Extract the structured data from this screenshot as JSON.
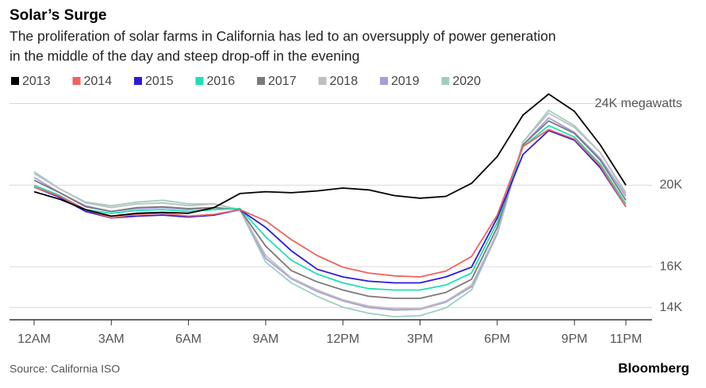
{
  "chart_data": {
    "type": "line",
    "title": "Solar’s Surge",
    "subtitle": [
      "The proliferation of solar farms in California has led to an oversupply of power generation",
      "in the middle of the day and steep drop-off in the evening"
    ],
    "source": "Source: California ISO",
    "brand": "Bloomberg",
    "categories": [
      "12AM",
      null,
      null,
      "3AM",
      null,
      null,
      "6AM",
      null,
      null,
      "9AM",
      null,
      null,
      "12PM",
      null,
      null,
      "3PM",
      null,
      null,
      "6PM",
      null,
      null,
      "9PM",
      null,
      "11PM"
    ],
    "ylim": [
      13400,
      24800
    ],
    "yticks": [
      {
        "value": 14000,
        "label": "14K"
      },
      {
        "value": 16000,
        "label": "16K"
      },
      {
        "value": 20000,
        "label": "20K"
      },
      {
        "value": 24000,
        "label": "24K megawatts"
      }
    ],
    "grid": true,
    "series": [
      {
        "name": "2013",
        "color": "#000000",
        "values": [
          19680,
          19310,
          18800,
          18480,
          18620,
          18670,
          18620,
          18900,
          19590,
          19680,
          19630,
          19720,
          19860,
          19770,
          19490,
          19360,
          19450,
          20090,
          21400,
          23440,
          24470,
          23620,
          21980,
          20000
        ]
      },
      {
        "name": "2014",
        "color": "#f0625f",
        "values": [
          19910,
          19450,
          18800,
          18390,
          18570,
          18620,
          18480,
          18570,
          18800,
          18250,
          17330,
          16550,
          15980,
          15690,
          15550,
          15500,
          15790,
          16500,
          18530,
          21890,
          22730,
          22260,
          20950,
          18940
        ]
      },
      {
        "name": "2015",
        "color": "#2b1adb",
        "values": [
          19910,
          19400,
          18710,
          18390,
          18480,
          18530,
          18440,
          18530,
          18800,
          17930,
          16780,
          15880,
          15500,
          15290,
          15210,
          15210,
          15500,
          15980,
          18390,
          21510,
          22680,
          22210,
          20860,
          18940
        ]
      },
      {
        "name": "2016",
        "color": "#1de0b5",
        "values": [
          20000,
          19490,
          18800,
          18620,
          18760,
          18800,
          18710,
          18800,
          18850,
          17470,
          16320,
          15640,
          15210,
          14930,
          14860,
          14860,
          15100,
          15690,
          18160,
          21890,
          22920,
          22360,
          21040,
          19080
        ]
      },
      {
        "name": "2017",
        "color": "#7a7a7a",
        "values": [
          20240,
          19630,
          18940,
          18710,
          18900,
          18940,
          18850,
          18900,
          18800,
          17010,
          15810,
          15260,
          14860,
          14550,
          14450,
          14450,
          14740,
          15380,
          17930,
          21980,
          23150,
          22540,
          21230,
          19260
        ]
      },
      {
        "name": "2018",
        "color": "#bfbfbf",
        "values": [
          20570,
          19820,
          19130,
          18900,
          19080,
          19130,
          18990,
          19080,
          18800,
          16550,
          15450,
          14860,
          14380,
          14070,
          13950,
          13950,
          14310,
          15100,
          17700,
          22120,
          23530,
          22830,
          21600,
          19540
        ]
      },
      {
        "name": "2019",
        "color": "#a79cdc",
        "values": [
          20380,
          19630,
          18990,
          18710,
          18850,
          18900,
          18800,
          18900,
          18800,
          16410,
          15410,
          14790,
          14330,
          14000,
          13880,
          13910,
          14260,
          15020,
          17610,
          21980,
          23300,
          22590,
          21320,
          19450
        ]
      },
      {
        "name": "2020",
        "color": "#9ccfc3",
        "values": [
          20660,
          19820,
          19170,
          18990,
          19170,
          19260,
          19080,
          19080,
          18800,
          16230,
          15210,
          14550,
          14020,
          13720,
          13550,
          13600,
          13980,
          14860,
          17610,
          22120,
          23670,
          22920,
          21600,
          19630
        ]
      }
    ]
  }
}
